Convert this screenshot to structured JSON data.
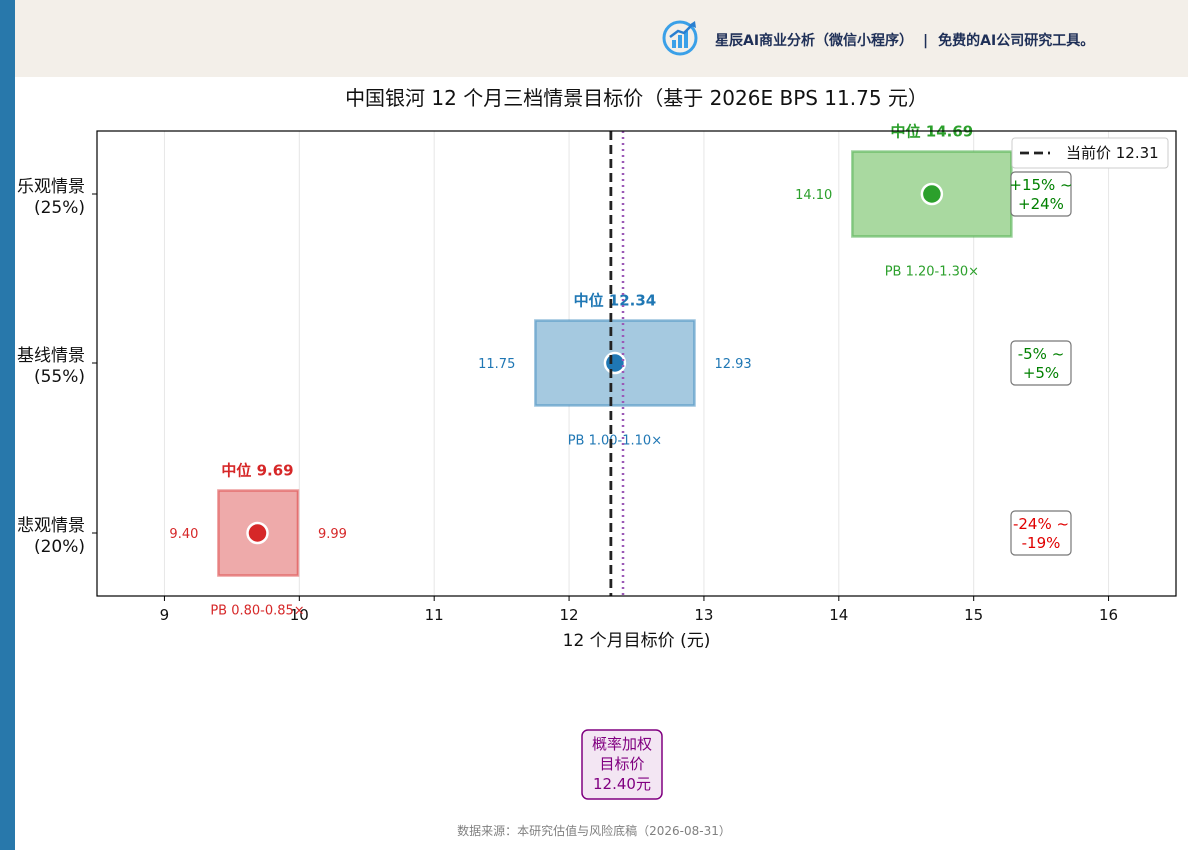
{
  "header": {
    "brand_name": "星辰AI商业分析（微信小程序）",
    "separator": "|",
    "tagline": "免费的AI公司研究工具。",
    "logo_icon": "bar-chart-growth-icon"
  },
  "chart_data": {
    "type": "range-bar",
    "title": "中国银河 12 个月三档情景目标价（基于 2026E BPS 11.75 元）",
    "xlabel": "12 个月目标价 (元)",
    "xlim": [
      8.5,
      16.5
    ],
    "xticks": [
      9,
      10,
      11,
      12,
      13,
      14,
      15,
      16
    ],
    "grid": "vertical",
    "legend": {
      "placement": "top-right",
      "label": "当前价 12.31"
    },
    "current_price": 12.31,
    "weighted_target": 12.4,
    "scenarios": [
      {
        "category": "乐观情景",
        "probability": "(25%)",
        "low": 14.1,
        "high": 15.28,
        "mid": 14.69,
        "low_label": "14.10",
        "high_label": "",
        "mid_label": "中位 14.69",
        "pb_label": "PB 1.20-1.30×",
        "change_label": [
          "+15% ~",
          "+24%"
        ],
        "color": "#2ca02c",
        "fill": "#a9d9a0"
      },
      {
        "category": "基线情景",
        "probability": "(55%)",
        "low": 11.75,
        "high": 12.93,
        "mid": 12.34,
        "low_label": "11.75",
        "high_label": "12.93",
        "mid_label": "中位 12.34",
        "pb_label": "PB 1.00-1.10×",
        "change_label": [
          "-5% ~",
          "+5%"
        ],
        "color": "#1f77b4",
        "fill": "#a5c9e0"
      },
      {
        "category": "悲观情景",
        "probability": "(20%)",
        "low": 9.4,
        "high": 9.99,
        "mid": 9.69,
        "low_label": "9.40",
        "high_label": "9.99",
        "mid_label": "中位 9.69",
        "pb_label": "PB 0.80-0.85×",
        "change_label": [
          "-24% ~",
          "-19%"
        ],
        "color": "#d62728",
        "fill": "#eeaaaa"
      }
    ],
    "weighted_box": [
      "概率加权",
      "目标价",
      "12.40元"
    ],
    "colors": {
      "current_line": "#222222",
      "weighted_line": "#9b59b6",
      "weighted_box_border": "#800080",
      "weighted_box_fill": "#f3e6f3",
      "change_positive": "#008000",
      "change_negative": "#e00000"
    }
  },
  "footnote": "数据来源：本研究估值与风险底稿（2026-08-31）"
}
